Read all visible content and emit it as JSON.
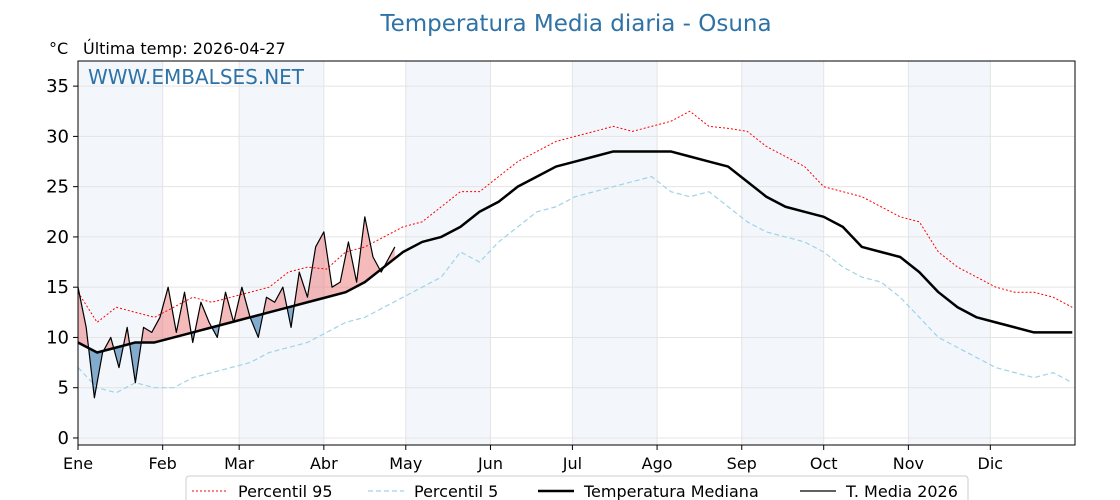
{
  "chart_data": {
    "type": "line",
    "title": "Temperatura Media diaria - Osuna",
    "unit_label": "°C",
    "last_temp_label": "Última temp: 2026-04-27",
    "watermark": "WWW.EMBALSES.NET",
    "x_tick_labels": [
      "Ene",
      "Feb",
      "Mar",
      "Abr",
      "May",
      "Jun",
      "Jul",
      "Ago",
      "Sep",
      "Oct",
      "Nov",
      "Dic"
    ],
    "x_tick_days": [
      1,
      32,
      60,
      91,
      121,
      152,
      182,
      213,
      244,
      274,
      305,
      335
    ],
    "x_range": [
      1,
      366
    ],
    "y_ticks": [
      0,
      5,
      10,
      15,
      20,
      25,
      30,
      35
    ],
    "ylim": [
      -0.7,
      37.5
    ],
    "grid": true,
    "shaded_months": [
      0,
      2,
      4,
      6,
      8,
      10
    ],
    "legend_position": "bottom-center",
    "series": [
      {
        "name": "Percentil 95",
        "color": "#ff0000",
        "style": "dotted",
        "x": [
          1,
          8,
          15,
          22,
          29,
          36,
          43,
          50,
          57,
          64,
          71,
          78,
          85,
          92,
          99,
          106,
          113,
          120,
          127,
          134,
          141,
          148,
          155,
          162,
          169,
          176,
          183,
          190,
          197,
          204,
          211,
          218,
          225,
          232,
          239,
          246,
          253,
          260,
          267,
          274,
          281,
          288,
          295,
          302,
          309,
          316,
          323,
          330,
          337,
          344,
          351,
          358,
          365
        ],
        "values": [
          14.5,
          11.5,
          13.0,
          12.5,
          12.0,
          13.0,
          14.0,
          13.5,
          14.0,
          14.5,
          15.0,
          16.5,
          17.0,
          16.8,
          18.5,
          19.0,
          20.0,
          21.0,
          21.5,
          23.0,
          24.5,
          24.5,
          26.0,
          27.5,
          28.5,
          29.5,
          30.0,
          30.5,
          31.0,
          30.5,
          31.0,
          31.5,
          32.5,
          31.0,
          30.8,
          30.5,
          29.0,
          28.0,
          27.0,
          25.0,
          24.5,
          24.0,
          23.0,
          22.0,
          21.5,
          18.5,
          17.0,
          16.0,
          15.0,
          14.5,
          14.5,
          14.0,
          13.0
        ]
      },
      {
        "name": "Percentil 5",
        "color": "#9fd3e6",
        "style": "dashed",
        "x": [
          1,
          8,
          15,
          22,
          29,
          36,
          43,
          50,
          57,
          64,
          71,
          78,
          85,
          92,
          99,
          106,
          113,
          120,
          127,
          134,
          141,
          148,
          155,
          162,
          169,
          176,
          183,
          190,
          197,
          204,
          211,
          218,
          225,
          232,
          239,
          246,
          253,
          260,
          267,
          274,
          281,
          288,
          295,
          302,
          309,
          316,
          323,
          330,
          337,
          344,
          351,
          358,
          365
        ],
        "values": [
          7.0,
          5.0,
          4.5,
          5.5,
          5.0,
          5.0,
          6.0,
          6.5,
          7.0,
          7.5,
          8.5,
          9.0,
          9.5,
          10.5,
          11.5,
          12.0,
          13.0,
          14.0,
          15.0,
          16.0,
          18.5,
          17.5,
          19.5,
          21.0,
          22.5,
          23.0,
          24.0,
          24.5,
          25.0,
          25.5,
          26.0,
          24.5,
          24.0,
          24.5,
          23.0,
          21.5,
          20.5,
          20.0,
          19.5,
          18.5,
          17.0,
          16.0,
          15.5,
          14.0,
          12.0,
          10.0,
          9.0,
          8.0,
          7.0,
          6.5,
          6.0,
          6.5,
          5.5
        ]
      },
      {
        "name": "Temperatura Mediana",
        "color": "#000000",
        "style": "solid-thick",
        "x": [
          1,
          8,
          15,
          22,
          29,
          36,
          43,
          50,
          57,
          64,
          71,
          78,
          85,
          92,
          99,
          106,
          113,
          120,
          127,
          134,
          141,
          148,
          155,
          162,
          169,
          176,
          183,
          190,
          197,
          204,
          211,
          218,
          225,
          232,
          239,
          246,
          253,
          260,
          267,
          274,
          281,
          288,
          295,
          302,
          309,
          316,
          323,
          330,
          337,
          344,
          351,
          358,
          365
        ],
        "values": [
          9.5,
          8.5,
          9.0,
          9.5,
          9.5,
          10.0,
          10.5,
          11.0,
          11.5,
          12.0,
          12.5,
          13.0,
          13.5,
          14.0,
          14.5,
          15.5,
          17.0,
          18.5,
          19.5,
          20.0,
          21.0,
          22.5,
          23.5,
          25.0,
          26.0,
          27.0,
          27.5,
          28.0,
          28.5,
          28.5,
          28.5,
          28.5,
          28.0,
          27.5,
          27.0,
          25.5,
          24.0,
          23.0,
          22.5,
          22.0,
          21.0,
          19.0,
          18.5,
          18.0,
          16.5,
          14.5,
          13.0,
          12.0,
          11.5,
          11.0,
          10.5,
          10.5,
          10.5
        ]
      },
      {
        "name": "T. Media 2026",
        "color": "#000000",
        "style": "solid-thin",
        "x": [
          1,
          4,
          7,
          10,
          13,
          16,
          19,
          22,
          25,
          28,
          31,
          34,
          37,
          40,
          43,
          46,
          49,
          52,
          55,
          58,
          61,
          64,
          67,
          70,
          73,
          76,
          79,
          82,
          85,
          88,
          91,
          94,
          97,
          100,
          103,
          106,
          109,
          112,
          115,
          117
        ],
        "values": [
          15.0,
          11.0,
          4.0,
          8.5,
          10.0,
          7.0,
          11.0,
          5.5,
          11.0,
          10.5,
          12.0,
          15.0,
          10.5,
          14.5,
          9.5,
          13.5,
          11.5,
          10.0,
          14.5,
          11.5,
          15.0,
          12.0,
          10.0,
          14.0,
          13.5,
          15.0,
          11.0,
          16.5,
          14.0,
          19.0,
          20.5,
          15.0,
          15.5,
          19.5,
          15.5,
          22.0,
          18.0,
          16.5,
          18.0,
          19.0
        ]
      }
    ]
  }
}
